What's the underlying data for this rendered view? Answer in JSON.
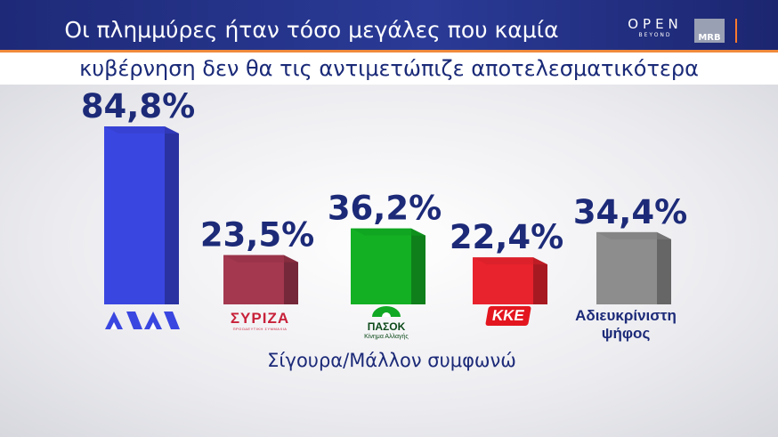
{
  "header": {
    "title_line1": "Οι πλημμύρες ήταν τόσο μεγάλες που καμία",
    "title_line2": "κυβέρνηση δεν θα τις αντιμετώπιζε αποτελεσματικότερα",
    "brand_open": "OPEN",
    "brand_beyond": "BEYOND",
    "brand_mrb": "MRB"
  },
  "chart_data": {
    "type": "bar",
    "categories": [
      "ΝΔ",
      "ΣΥΡΙΖΑ",
      "ΠΑΣΟΚ",
      "ΚΚΕ",
      "Αδιευκρίνιστη ψήφος"
    ],
    "values": [
      84.8,
      23.5,
      36.2,
      22.4,
      34.4
    ],
    "value_labels": [
      "84,8%",
      "23,5%",
      "36,2%",
      "22,4%",
      "34,4%"
    ],
    "colors": [
      "#3a46e0",
      "#a3384f",
      "#13b024",
      "#e8232e",
      "#8d8d8d"
    ],
    "xlabel": "Σίγουρα/Μάλλον συμφωνώ",
    "ylim": [
      0,
      84.8
    ],
    "grid": false
  },
  "logos": {
    "nd": "ΝΔ",
    "syriza": "ΣΥΡΙΖΑ",
    "syriza_sub": "ΠΡΟΟΔΕΥΤΙΚΗ ΣΥΜΜΑΧΙΑ",
    "pasok": "ΠΑΣΟΚ",
    "pasok_sub": "Κίνημα Αλλαγής",
    "kke": "ΚΚΕ"
  },
  "undecided_label": "Αδιευκρίνιστη ψήφος"
}
